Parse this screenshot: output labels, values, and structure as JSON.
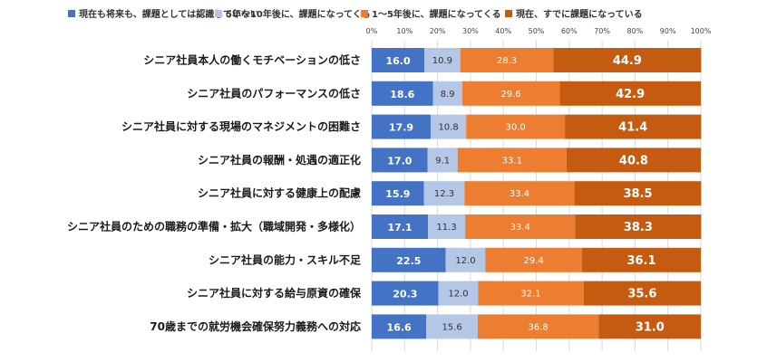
{
  "chart_data": {
    "type": "bar",
    "orientation": "horizontal",
    "stacked": true,
    "percent": true,
    "xlim": [
      0,
      100
    ],
    "xticks": [
      "0%",
      "10%",
      "20%",
      "30%",
      "40%",
      "50%",
      "60%",
      "70%",
      "80%",
      "90%",
      "100%"
    ],
    "legend_position": "top",
    "grid": true,
    "categories": [
      "シニア社員本人の働くモチベーションの低さ",
      "シニア社員のパフォーマンスの低さ",
      "シニア社員に対する現場のマネジメントの困難さ",
      "シニア社員の報酬・処遇の適正化",
      "シニア社員に対する健康上の配慮",
      "シニア社員のための職務の準備・拡大（職域開発・多様化）",
      "シニア社員の能力・スキル不足",
      "シニア社員に対する給与原資の確保",
      "70歳までの就労機会確保努力義務への対応"
    ],
    "series": [
      {
        "name": "現在も将来も、課題としては認識していない",
        "color": "#4472c4",
        "label_color": "#ffffff",
        "bold": true,
        "values": [
          16.0,
          18.6,
          17.9,
          17.0,
          15.9,
          17.1,
          22.5,
          20.3,
          16.6
        ]
      },
      {
        "name": "5年～10年後に、課題になってくる",
        "color": "#b4c7e7",
        "label_color": "#333333",
        "bold": false,
        "values": [
          10.9,
          8.9,
          10.8,
          9.1,
          12.3,
          11.3,
          12.0,
          12.0,
          15.6
        ]
      },
      {
        "name": "1～5年後に、課題になってくる",
        "color": "#ed7d31",
        "label_color": "#ffffff",
        "bold": false,
        "values": [
          28.3,
          29.6,
          30.0,
          33.1,
          33.4,
          33.4,
          29.4,
          32.1,
          36.8
        ]
      },
      {
        "name": "現在、すでに課題になっている",
        "color": "#c55a11",
        "label_color": "#ffffff",
        "bold": true,
        "values": [
          44.9,
          42.9,
          41.4,
          40.8,
          38.5,
          38.3,
          36.1,
          35.6,
          31.0
        ]
      }
    ]
  }
}
